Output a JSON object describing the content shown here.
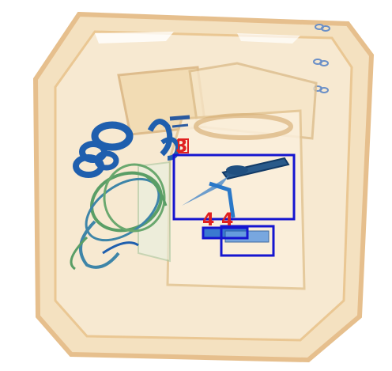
{
  "scan": {
    "colors": {
      "background": "#ffffff",
      "tray_fill": "#f3dcb6",
      "tray_edge": "#e2b57a",
      "organic_blue": "#1f5fae",
      "organic_green": "#5a9e66",
      "box_blue": "#1515d0",
      "label_red": "#e02020"
    },
    "detections": [
      {
        "label": "3",
        "box_color": "#e02020"
      },
      {
        "label": "",
        "box_color": "#1515d0"
      },
      {
        "label": "4",
        "box_color": "#1515d0"
      },
      {
        "label": "4",
        "box_color": "#1515d0"
      }
    ]
  }
}
